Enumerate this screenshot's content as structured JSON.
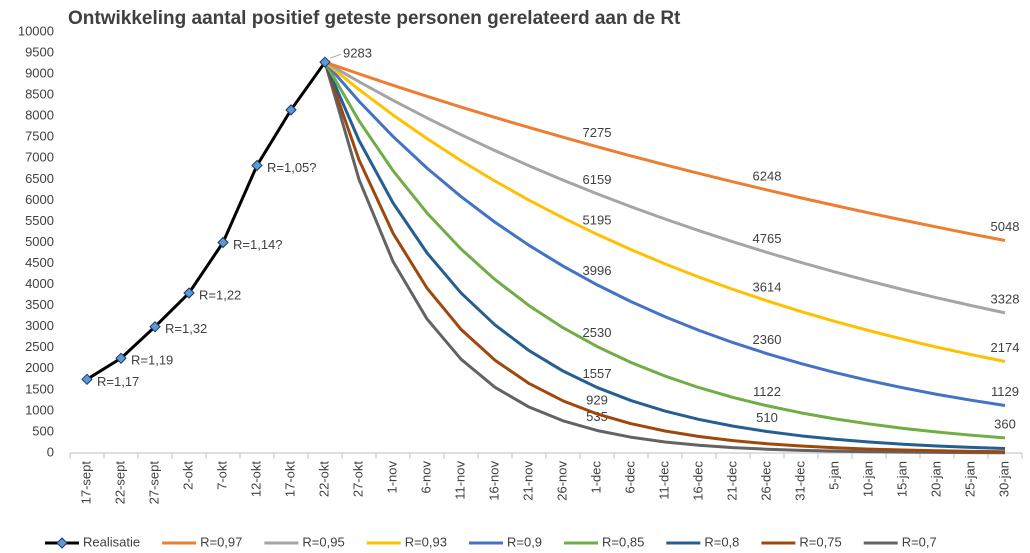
{
  "chart_data": {
    "type": "line",
    "title": "Ontwikkeling aantal positief geteste personen gerelateerd aan de Rt",
    "categories": [
      "17-sept",
      "22-sept",
      "27-sept",
      "2-okt",
      "7-okt",
      "12-okt",
      "17-okt",
      "22-okt",
      "27-okt",
      "1-nov",
      "6-nov",
      "11-nov",
      "16-nov",
      "21-nov",
      "26-nov",
      "1-dec",
      "6-dec",
      "11-dec",
      "16-dec",
      "21-dec",
      "26-dec",
      "31-dec",
      "5-jan",
      "10-jan",
      "15-jan",
      "20-jan",
      "25-jan",
      "30-jan"
    ],
    "ylim": [
      0,
      10000
    ],
    "yticks": [
      0,
      500,
      1000,
      1500,
      2000,
      2500,
      3000,
      3500,
      4000,
      4500,
      5000,
      5500,
      6000,
      6500,
      7000,
      7500,
      8000,
      8500,
      9000,
      9500,
      10000
    ],
    "grid": false,
    "legend": "bottom",
    "series": [
      {
        "name": "Realisatie",
        "color": "#000000",
        "marker_color": "#5b9bd5",
        "values": [
          1750,
          2250,
          3000,
          3800,
          5000,
          6830,
          8150,
          9283,
          null,
          null,
          null,
          null,
          null,
          null,
          null,
          null,
          null,
          null,
          null,
          null,
          null,
          null,
          null,
          null,
          null,
          null,
          null,
          null
        ],
        "point_labels": [
          "R=1,17",
          "R=1,19",
          "R=1,32",
          "R=1,22",
          "R=1,14?",
          "R=1,05?",
          null,
          null,
          null,
          null,
          null,
          null,
          null,
          null,
          null,
          null,
          null,
          null,
          null,
          null,
          null,
          null,
          null,
          null,
          null,
          null,
          null,
          null
        ],
        "labeled": [
          7
        ]
      },
      {
        "name": "R=0,97",
        "color": "#ed7d31",
        "values": [
          null,
          null,
          null,
          null,
          null,
          null,
          null,
          9283,
          9005,
          8734,
          8473,
          8218,
          7971,
          7733,
          7501,
          7275,
          7057,
          6845,
          6640,
          6441,
          6248,
          6060,
          5879,
          5703,
          5531,
          5366,
          5204,
          5048
        ],
        "labeled": [
          15,
          20,
          27
        ]
      },
      {
        "name": "R=0,95",
        "color": "#a5a5a5",
        "values": [
          null,
          null,
          null,
          null,
          null,
          null,
          null,
          9283,
          8819,
          8378,
          7959,
          7561,
          7183,
          6824,
          6482,
          6159,
          5850,
          5558,
          5280,
          5016,
          4765,
          4527,
          4301,
          4085,
          3881,
          3687,
          3503,
          3328
        ],
        "labeled": [
          15,
          20,
          27
        ]
      },
      {
        "name": "R=0,93",
        "color": "#ffc000",
        "values": [
          null,
          null,
          null,
          null,
          null,
          null,
          null,
          9283,
          8633,
          8029,
          7467,
          6945,
          6458,
          6006,
          5586,
          5195,
          4831,
          4493,
          4178,
          3886,
          3614,
          3360,
          3126,
          2907,
          2703,
          2514,
          2338,
          2174
        ],
        "labeled": [
          15,
          20,
          27
        ]
      },
      {
        "name": "R=0,9",
        "color": "#4472c4",
        "values": [
          null,
          null,
          null,
          null,
          null,
          null,
          null,
          9283,
          8355,
          7519,
          6767,
          6091,
          5481,
          4933,
          4440,
          3996,
          3596,
          3237,
          2913,
          2622,
          2360,
          2124,
          1911,
          1720,
          1548,
          1393,
          1254,
          1129
        ],
        "labeled": [
          15,
          20,
          27
        ]
      },
      {
        "name": "R=0,85",
        "color": "#70ad47",
        "values": [
          null,
          null,
          null,
          null,
          null,
          null,
          null,
          9283,
          7891,
          6707,
          5701,
          4846,
          4119,
          3501,
          2976,
          2530,
          2150,
          1828,
          1553,
          1320,
          1122,
          954,
          811,
          690,
          586,
          498,
          423,
          360
        ],
        "labeled": [
          15,
          20,
          27
        ]
      },
      {
        "name": "R=0,8",
        "color": "#255e91",
        "values": [
          null,
          null,
          null,
          null,
          null,
          null,
          null,
          9283,
          7426,
          5941,
          4753,
          3802,
          3042,
          2433,
          1947,
          1557,
          1246,
          997,
          797,
          638,
          510,
          408,
          327,
          261,
          209,
          167,
          134,
          107
        ],
        "labeled": [
          15,
          20
        ]
      },
      {
        "name": "R=0,75",
        "color": "#9e480e",
        "values": [
          null,
          null,
          null,
          null,
          null,
          null,
          null,
          9283,
          6962,
          5222,
          3916,
          2937,
          2203,
          1652,
          1239,
          929,
          697,
          523,
          392,
          294,
          221,
          165,
          124,
          93,
          70,
          52,
          39,
          30
        ],
        "labeled": [
          15
        ]
      },
      {
        "name": "R=0,7",
        "color": "#636363",
        "values": [
          null,
          null,
          null,
          null,
          null,
          null,
          null,
          9283,
          6498,
          4549,
          3184,
          2229,
          1560,
          1092,
          765,
          535,
          375,
          262,
          184,
          128,
          90,
          63,
          44,
          31,
          21,
          15,
          10,
          7
        ],
        "labeled": [
          15
        ]
      }
    ]
  }
}
